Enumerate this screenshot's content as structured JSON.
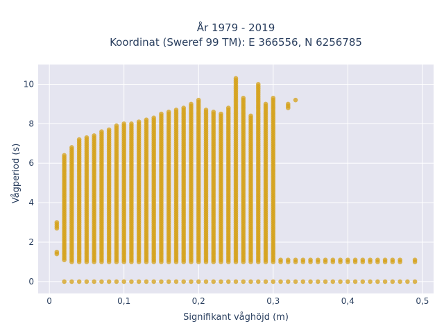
{
  "chart_data": {
    "type": "scatter",
    "title_line1": "År 1979 - 2019",
    "title_line2": "Koordinat (Sweref 99 TM): E 366556, N 6256785",
    "xlabel": "Signifikant våghöjd (m)",
    "ylabel": "Vågperiod (s)",
    "xlim": [
      -0.015,
      0.515
    ],
    "ylim": [
      -0.6,
      11
    ],
    "x_ticks": [
      0,
      0.1,
      0.2,
      0.3,
      0.4,
      0.5
    ],
    "x_tick_labels": [
      "0",
      "0,1",
      "0,2",
      "0,3",
      "0,4",
      "0,5"
    ],
    "y_ticks": [
      0,
      2,
      4,
      6,
      8,
      10
    ],
    "y_tick_labels": [
      "0",
      "2",
      "4",
      "6",
      "8",
      "10"
    ],
    "grid": true,
    "marker_color": "#d4a017",
    "background_color": "#e5e5f0",
    "x_step": 0.01,
    "series": [
      {
        "bands": [
          {
            "x": 0.01,
            "segments": [
              [
                1.4,
                1.5
              ],
              [
                2.7,
                3.0
              ]
            ]
          },
          {
            "x": 0.02,
            "segments": [
              [
                1.1,
                6.4
              ]
            ]
          },
          {
            "x": 0.03,
            "segments": [
              [
                1.0,
                6.8
              ]
            ]
          },
          {
            "x": 0.04,
            "segments": [
              [
                1.0,
                7.2
              ]
            ]
          },
          {
            "x": 0.05,
            "segments": [
              [
                1.0,
                7.3
              ]
            ]
          },
          {
            "x": 0.06,
            "segments": [
              [
                1.0,
                7.4
              ]
            ]
          },
          {
            "x": 0.07,
            "segments": [
              [
                1.0,
                7.6
              ]
            ]
          },
          {
            "x": 0.08,
            "segments": [
              [
                1.0,
                7.7
              ]
            ]
          },
          {
            "x": 0.09,
            "segments": [
              [
                1.0,
                7.9
              ]
            ]
          },
          {
            "x": 0.1,
            "segments": [
              [
                1.0,
                8.0
              ]
            ]
          },
          {
            "x": 0.11,
            "segments": [
              [
                1.0,
                8.0
              ]
            ]
          },
          {
            "x": 0.12,
            "segments": [
              [
                1.0,
                8.1
              ]
            ]
          },
          {
            "x": 0.13,
            "segments": [
              [
                1.0,
                8.2
              ]
            ]
          },
          {
            "x": 0.14,
            "segments": [
              [
                1.0,
                8.3
              ]
            ]
          },
          {
            "x": 0.15,
            "segments": [
              [
                1.0,
                8.5
              ]
            ]
          },
          {
            "x": 0.16,
            "segments": [
              [
                1.0,
                8.6
              ]
            ]
          },
          {
            "x": 0.17,
            "segments": [
              [
                1.0,
                8.7
              ]
            ]
          },
          {
            "x": 0.18,
            "segments": [
              [
                1.0,
                8.8
              ]
            ]
          },
          {
            "x": 0.19,
            "segments": [
              [
                1.0,
                9.0
              ]
            ]
          },
          {
            "x": 0.2,
            "segments": [
              [
                1.0,
                9.2
              ]
            ]
          },
          {
            "x": 0.21,
            "segments": [
              [
                1.0,
                8.7
              ]
            ]
          },
          {
            "x": 0.22,
            "segments": [
              [
                1.0,
                8.6
              ]
            ]
          },
          {
            "x": 0.23,
            "segments": [
              [
                1.0,
                8.5
              ]
            ]
          },
          {
            "x": 0.24,
            "segments": [
              [
                1.0,
                8.8
              ]
            ]
          },
          {
            "x": 0.25,
            "segments": [
              [
                1.0,
                10.3
              ]
            ]
          },
          {
            "x": 0.26,
            "segments": [
              [
                1.0,
                9.3
              ]
            ]
          },
          {
            "x": 0.27,
            "segments": [
              [
                1.0,
                8.4
              ]
            ]
          },
          {
            "x": 0.28,
            "segments": [
              [
                1.0,
                10.0
              ]
            ]
          },
          {
            "x": 0.29,
            "segments": [
              [
                1.0,
                9.0
              ]
            ]
          },
          {
            "x": 0.3,
            "segments": [
              [
                1.0,
                9.3
              ]
            ]
          },
          {
            "x": 0.31,
            "segments": [
              [
                1.0,
                1.1
              ]
            ]
          },
          {
            "x": 0.32,
            "segments": [
              [
                1.0,
                1.1
              ],
              [
                8.8,
                9.0
              ]
            ]
          },
          {
            "x": 0.33,
            "segments": [
              [
                1.0,
                1.1
              ],
              [
                9.2,
                9.2
              ]
            ]
          },
          {
            "x": 0.34,
            "segments": [
              [
                1.0,
                1.1
              ]
            ]
          },
          {
            "x": 0.35,
            "segments": [
              [
                1.0,
                1.1
              ]
            ]
          },
          {
            "x": 0.36,
            "segments": [
              [
                1.0,
                1.1
              ]
            ]
          },
          {
            "x": 0.37,
            "segments": [
              [
                1.0,
                1.1
              ]
            ]
          },
          {
            "x": 0.38,
            "segments": [
              [
                1.0,
                1.1
              ]
            ]
          },
          {
            "x": 0.39,
            "segments": [
              [
                1.0,
                1.1
              ]
            ]
          },
          {
            "x": 0.4,
            "segments": [
              [
                1.0,
                1.1
              ]
            ]
          },
          {
            "x": 0.41,
            "segments": [
              [
                1.0,
                1.1
              ]
            ]
          },
          {
            "x": 0.42,
            "segments": [
              [
                1.0,
                1.1
              ]
            ]
          },
          {
            "x": 0.43,
            "segments": [
              [
                1.0,
                1.1
              ]
            ]
          },
          {
            "x": 0.44,
            "segments": [
              [
                1.0,
                1.1
              ]
            ]
          },
          {
            "x": 0.45,
            "segments": [
              [
                1.0,
                1.1
              ]
            ]
          },
          {
            "x": 0.46,
            "segments": [
              [
                1.0,
                1.1
              ]
            ]
          },
          {
            "x": 0.47,
            "segments": [
              [
                1.0,
                1.1
              ]
            ]
          },
          {
            "x": 0.49,
            "segments": [
              [
                1.0,
                1.1
              ]
            ]
          }
        ],
        "zero_row": {
          "y": 0,
          "x_from": 0.02,
          "x_to": 0.49
        }
      }
    ]
  }
}
